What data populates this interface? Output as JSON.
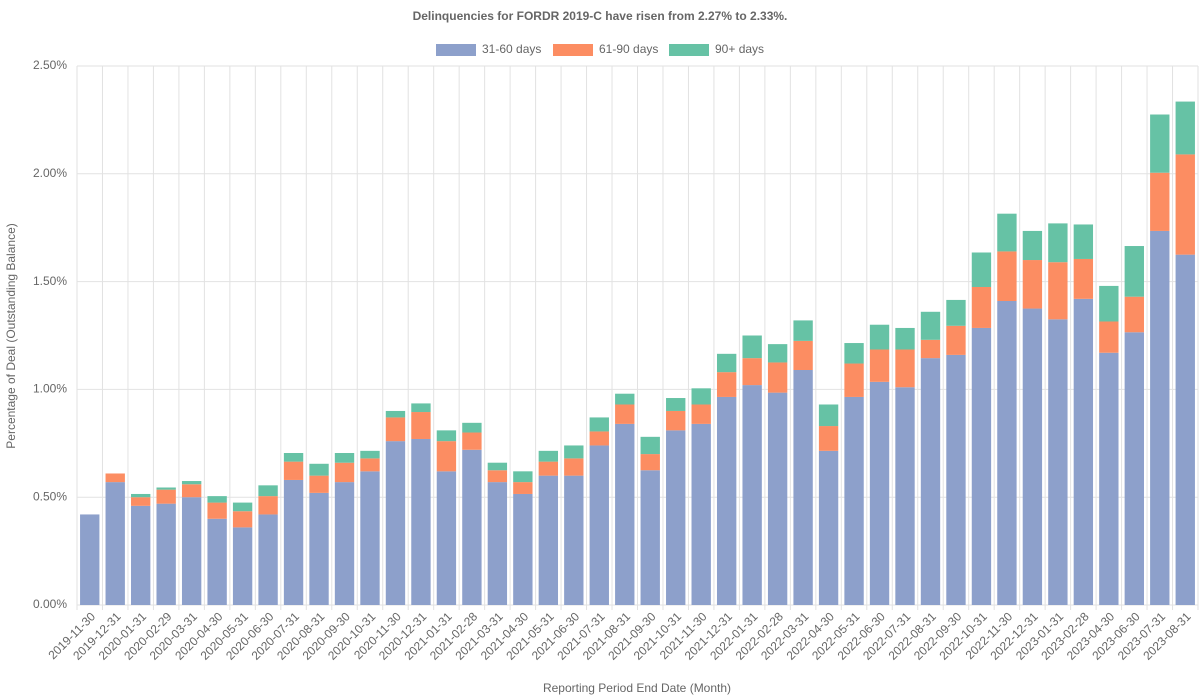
{
  "chart_data": {
    "type": "stacked_bar",
    "title": "Delinquencies for FORDR 2019-C have risen from 2.27% to 2.33%.",
    "x_label": "Reporting Period End Date (Month)",
    "y_label": "Percentage of Deal (Outstanding Balance)",
    "categories": [
      "2019-11-30",
      "2019-12-31",
      "2020-01-31",
      "2020-02-29",
      "2020-03-31",
      "2020-04-30",
      "2020-05-31",
      "2020-06-30",
      "2020-07-31",
      "2020-08-31",
      "2020-09-30",
      "2020-10-31",
      "2020-11-30",
      "2020-12-31",
      "2021-01-31",
      "2021-02-28",
      "2021-03-31",
      "2021-04-30",
      "2021-05-31",
      "2021-06-30",
      "2021-07-31",
      "2021-08-31",
      "2021-09-30",
      "2021-10-31",
      "2021-11-30",
      "2021-12-31",
      "2022-01-31",
      "2022-02-28",
      "2022-03-31",
      "2022-04-30",
      "2022-05-31",
      "2022-06-30",
      "2022-07-31",
      "2022-08-31",
      "2022-09-30",
      "2022-10-31",
      "2022-11-30",
      "2022-12-31",
      "2023-01-31",
      "2023-02-28",
      "2023-04-30",
      "2023-06-30",
      "2023-07-31",
      "2023-08-31"
    ],
    "series": [
      {
        "name": "31-60 days",
        "color": "#8da0cb",
        "values": [
          0.42,
          0.57,
          0.46,
          0.47,
          0.5,
          0.4,
          0.36,
          0.42,
          0.58,
          0.52,
          0.57,
          0.62,
          0.76,
          0.77,
          0.62,
          0.72,
          0.57,
          0.515,
          0.6,
          0.6,
          0.74,
          0.84,
          0.625,
          0.81,
          0.84,
          0.965,
          1.02,
          0.985,
          1.09,
          0.715,
          0.965,
          1.035,
          1.01,
          1.145,
          1.16,
          1.285,
          1.41,
          1.375,
          1.325,
          1.42,
          1.17,
          1.265,
          1.735,
          1.625
        ]
      },
      {
        "name": "61-90 days",
        "color": "#fc8d62",
        "values": [
          0,
          0.04,
          0.04,
          0.065,
          0.06,
          0.075,
          0.075,
          0.085,
          0.085,
          0.08,
          0.09,
          0.06,
          0.11,
          0.125,
          0.14,
          0.08,
          0.055,
          0.055,
          0.065,
          0.08,
          0.065,
          0.09,
          0.075,
          0.09,
          0.09,
          0.115,
          0.125,
          0.14,
          0.135,
          0.115,
          0.155,
          0.15,
          0.175,
          0.085,
          0.135,
          0.19,
          0.23,
          0.225,
          0.265,
          0.185,
          0.145,
          0.165,
          0.27,
          0.465
        ]
      },
      {
        "name": "90+ days",
        "color": "#66c2a5",
        "values": [
          0,
          0,
          0.015,
          0.01,
          0.015,
          0.03,
          0.04,
          0.05,
          0.04,
          0.055,
          0.045,
          0.035,
          0.03,
          0.04,
          0.05,
          0.045,
          0.035,
          0.05,
          0.05,
          0.06,
          0.065,
          0.05,
          0.08,
          0.06,
          0.075,
          0.085,
          0.105,
          0.085,
          0.095,
          0.1,
          0.095,
          0.115,
          0.1,
          0.13,
          0.12,
          0.16,
          0.175,
          0.135,
          0.18,
          0.16,
          0.165,
          0.235,
          0.27,
          0.245
        ]
      }
    ],
    "ylim": [
      0,
      2.5
    ],
    "yticks": [
      {
        "value": 0,
        "label": "0.00%"
      },
      {
        "value": 0.5,
        "label": "0.50%"
      },
      {
        "value": 1,
        "label": "1.00%"
      },
      {
        "value": 1.5,
        "label": "1.50%"
      },
      {
        "value": 2,
        "label": "2.00%"
      },
      {
        "value": 2.5,
        "label": "2.50%"
      }
    ],
    "grid": true
  }
}
